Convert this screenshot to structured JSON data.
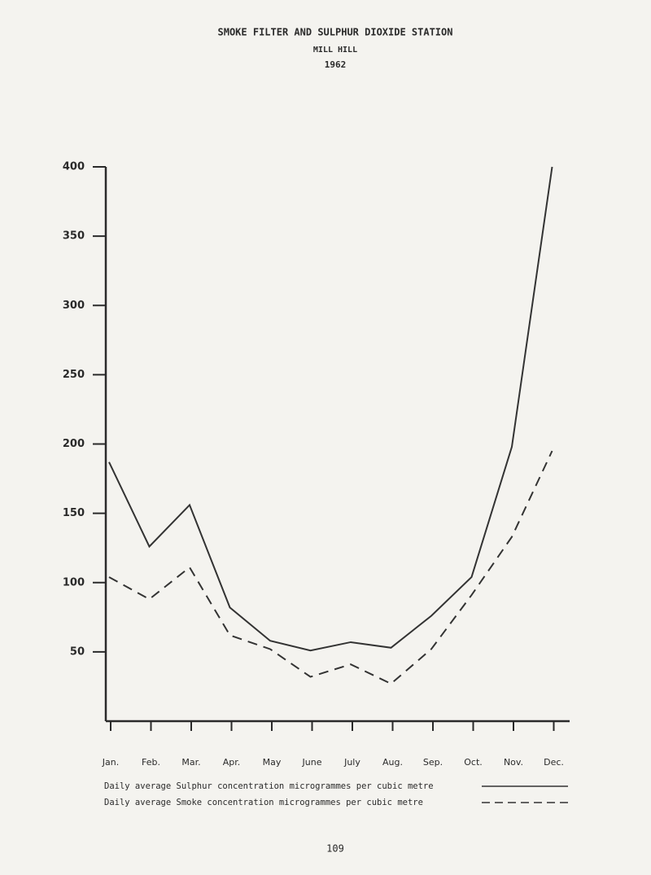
{
  "chart_data": {
    "type": "line",
    "title": "SMOKE FILTER AND SULPHUR DIOXIDE STATION",
    "subtitle": "MILL HILL",
    "year": "1962",
    "categories": [
      "Jan.",
      "Feb.",
      "Mar.",
      "Apr.",
      "May",
      "June",
      "July",
      "Aug.",
      "Sep.",
      "Oct.",
      "Nov.",
      "Dec."
    ],
    "series": [
      {
        "name": "Daily average Sulphur concentration microgrammes per cubic metre",
        "color": "#333333",
        "line_style": "solid",
        "values": [
          187,
          126,
          156,
          82,
          58,
          51,
          57,
          53,
          76,
          104,
          198,
          400
        ]
      },
      {
        "name": "Daily average Smoke concentration microgrammes per cubic metre",
        "color": "#333333",
        "line_style": "dashed",
        "values": [
          104,
          88,
          111,
          62,
          52,
          32,
          41,
          27,
          52,
          91,
          133,
          195
        ]
      }
    ],
    "ylim": [
      0,
      400
    ],
    "yticks": [
      50,
      100,
      150,
      200,
      250,
      300,
      350,
      400
    ],
    "page_number": "109"
  }
}
